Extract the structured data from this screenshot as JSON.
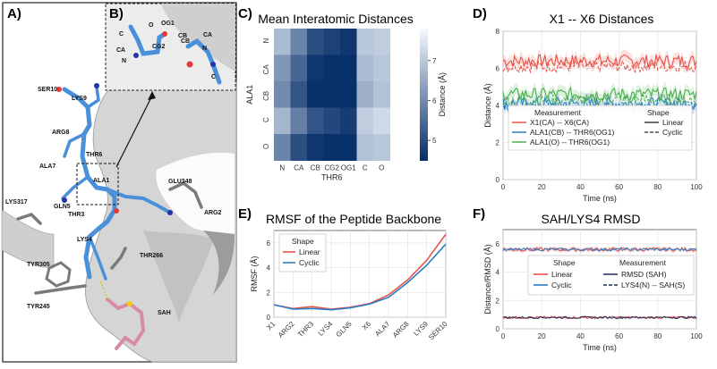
{
  "panels": [
    {
      "label": "A)"
    },
    {
      "label": "B)"
    },
    {
      "label": "C)"
    },
    {
      "label": "D)"
    },
    {
      "label": "E)"
    },
    {
      "label": "F)"
    }
  ],
  "structure_labels": {
    "panel_a": [
      "SER10",
      "LYS9",
      "ARG8",
      "ALA7",
      "THR6",
      "ALA1",
      "GLN5",
      "LYS317",
      "THR3",
      "LYS4",
      "GLU348",
      "ARG2",
      "THR266",
      "TYR305",
      "TYR245",
      "SAH"
    ],
    "panel_b": [
      "C",
      "O",
      "N",
      "CA",
      "OG1",
      "CG2",
      "CB",
      "CB",
      "CA",
      "N",
      "C"
    ]
  },
  "colors": {
    "linear": "#e8534a",
    "cyclic": "#2a7fc4",
    "green": "#4caf50",
    "navy": "#1f2e5a",
    "heat_low": "#f2f7fd",
    "heat_high": "#08306b",
    "peptide": "#4a90d9"
  },
  "chart_data": [
    {
      "id": "C",
      "type": "heatmap",
      "title": "Mean Interatomic Distances",
      "xlabel": "THR6",
      "ylabel": "ALA1",
      "x": [
        "N",
        "CA",
        "CB",
        "CG2",
        "OG1",
        "C",
        "O"
      ],
      "y": [
        "N",
        "CA",
        "CB",
        "C",
        "O"
      ],
      "values": [
        [
          6.8,
          5.9,
          5.0,
          4.8,
          4.6,
          7.0,
          7.1
        ],
        [
          6.2,
          5.4,
          4.6,
          4.4,
          4.3,
          6.8,
          7.0
        ],
        [
          6.0,
          5.1,
          4.3,
          4.1,
          3.9,
          6.6,
          6.9
        ],
        [
          6.7,
          5.8,
          5.1,
          4.9,
          4.7,
          7.1,
          7.3
        ],
        [
          5.9,
          5.0,
          4.6,
          4.4,
          4.2,
          6.9,
          7.0
        ]
      ],
      "colorbar": {
        "label": "Distance (Å)",
        "range": [
          4.5,
          7.8
        ],
        "ticks": [
          5,
          6,
          7
        ]
      }
    },
    {
      "id": "D",
      "type": "line",
      "title": "X1 -- X6 Distances",
      "xlabel": "Time (ns)",
      "ylabel": "Distance (Å)",
      "xlim": [
        0,
        100
      ],
      "ylim": [
        0,
        8
      ],
      "xticks": [
        0,
        20,
        40,
        60,
        80,
        100
      ],
      "yticks": [
        0,
        2,
        4,
        6,
        8
      ],
      "series": [
        {
          "name": "X1(CA) -- X6(CA)",
          "color_key": "linear",
          "mean_linear": 6.4,
          "mean_cyclic": 6.1
        },
        {
          "name": "ALA1(CB) -- THR6(OG1)",
          "color_key": "cyclic",
          "mean_linear": 4.1,
          "mean_cyclic": 3.9
        },
        {
          "name": "ALA1(O) -- THR6(OG1)",
          "color_key": "green",
          "mean_linear": 4.6,
          "mean_cyclic": 4.3
        }
      ],
      "legend": {
        "measurement_title": "Measurement",
        "shape_title": "Shape",
        "shape_items": [
          "Linear",
          "Cyclic"
        ],
        "placement": "bottom"
      }
    },
    {
      "id": "E",
      "type": "line",
      "title": "RMSF of the Peptide Backbone",
      "xlabel": "",
      "ylabel": "RMSF (Å)",
      "categories": [
        "X1",
        "ARG2",
        "THR3",
        "LYS4",
        "GLN5",
        "X6",
        "ALA7",
        "ARG8",
        "LYS9",
        "SER10"
      ],
      "ylim": [
        0,
        7
      ],
      "yticks": [
        0,
        2,
        4,
        6
      ],
      "series": [
        {
          "name": "Linear",
          "color_key": "linear",
          "values": [
            1.0,
            0.7,
            0.85,
            0.65,
            0.8,
            1.1,
            1.8,
            3.0,
            4.6,
            6.7
          ]
        },
        {
          "name": "Cyclic",
          "color_key": "cyclic",
          "values": [
            1.0,
            0.65,
            0.7,
            0.6,
            0.75,
            1.05,
            1.6,
            2.8,
            4.2,
            5.9
          ]
        }
      ],
      "legend": {
        "title": "Shape",
        "placement": "top-left"
      }
    },
    {
      "id": "F",
      "type": "line",
      "title": "SAH/LYS4 RMSD",
      "xlabel": "Time (ns)",
      "ylabel": "Distance/RMSD (Å)",
      "xlim": [
        0,
        100
      ],
      "ylim": [
        0,
        7
      ],
      "xticks": [
        0,
        20,
        40,
        60,
        80,
        100
      ],
      "yticks": [
        0,
        2,
        4,
        6
      ],
      "series": [
        {
          "name": "LYS4(N) -- SAH(S)",
          "mean": 5.6
        },
        {
          "name": "RMSD (SAH)",
          "mean": 0.8
        }
      ],
      "legend": {
        "shape_title": "Shape",
        "shape_items": [
          "Linear",
          "Cyclic"
        ],
        "measurement_title": "Measurement",
        "measurement_items": [
          "RMSD (SAH)",
          "LYS4(N) -- SAH(S)"
        ],
        "placement": "center"
      }
    }
  ]
}
